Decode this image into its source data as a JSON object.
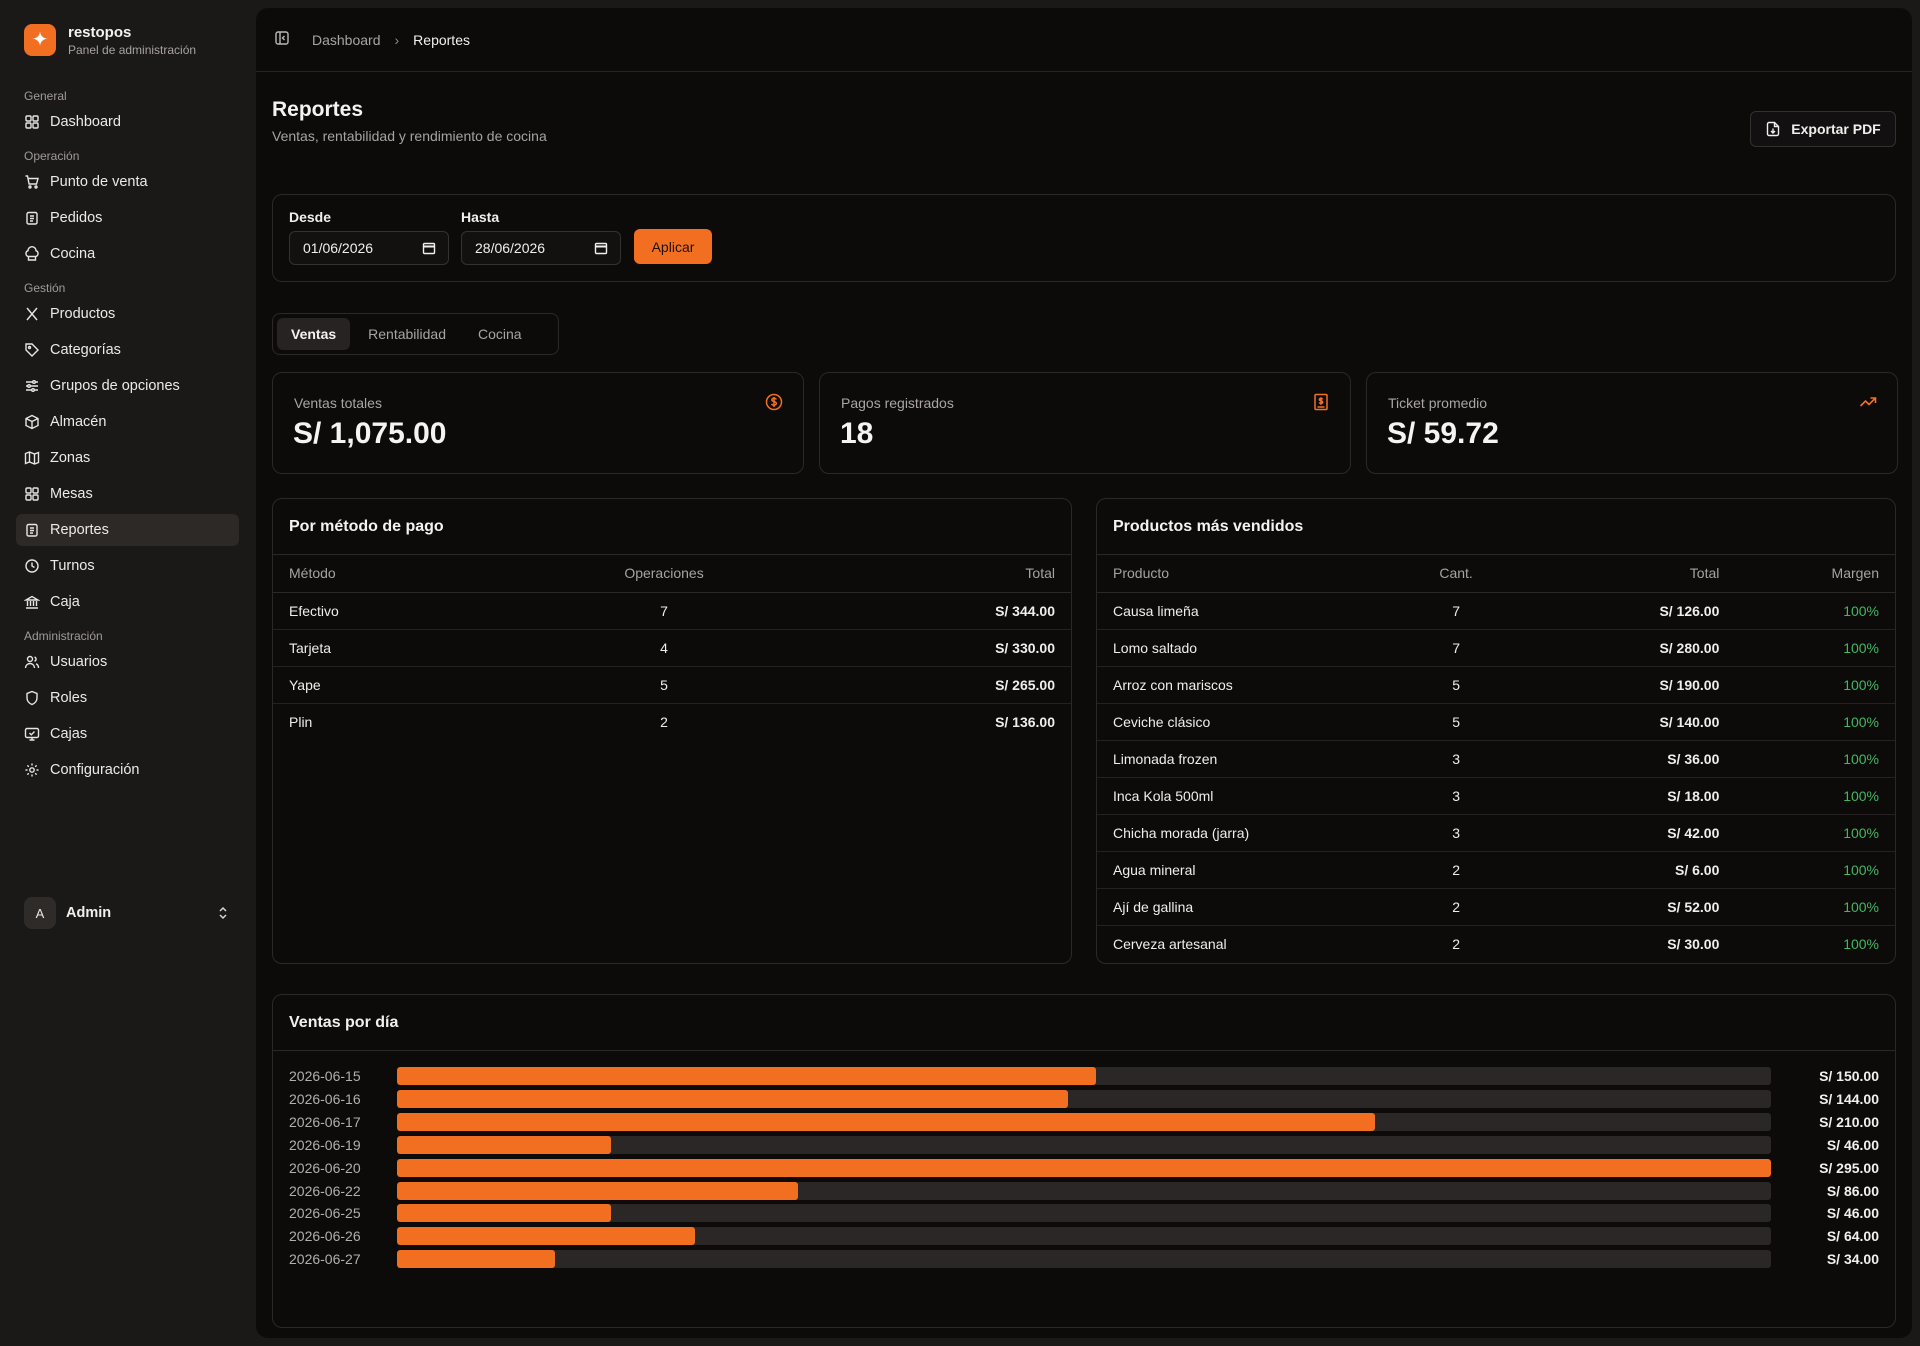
{
  "brand": {
    "name": "restopos",
    "subtitle": "Panel de administración"
  },
  "nav": {
    "groups": [
      {
        "label": "General",
        "items": [
          "Dashboard"
        ]
      },
      {
        "label": "Operación",
        "items": [
          "Punto de venta",
          "Pedidos",
          "Cocina"
        ]
      },
      {
        "label": "Gestión",
        "items": [
          "Productos",
          "Categorías",
          "Grupos de opciones",
          "Almacén",
          "Zonas",
          "Mesas",
          "Reportes",
          "Turnos",
          "Caja"
        ]
      },
      {
        "label": "Administración",
        "items": [
          "Usuarios",
          "Roles",
          "Cajas",
          "Configuración"
        ]
      }
    ],
    "active": "Reportes"
  },
  "user": {
    "initial": "A",
    "name": "Admin"
  },
  "breadcrumb": {
    "parent": "Dashboard",
    "current": "Reportes"
  },
  "page": {
    "title": "Reportes",
    "subtitle": "Ventas, rentabilidad y rendimiento de cocina",
    "export_label": "Exportar PDF"
  },
  "filters": {
    "from_label": "Desde",
    "from_value": "01/06/2026",
    "to_label": "Hasta",
    "to_value": "28/06/2026",
    "apply_label": "Aplicar"
  },
  "tabs": [
    "Ventas",
    "Rentabilidad",
    "Cocina"
  ],
  "active_tab": "Ventas",
  "stats": [
    {
      "label": "Ventas totales",
      "value": "S/ 1,075.00",
      "icon": "dollar-circle-icon"
    },
    {
      "label": "Pagos registrados",
      "value": "18",
      "icon": "receipt-icon"
    },
    {
      "label": "Ticket promedio",
      "value": "S/ 59.72",
      "icon": "trending-up-icon"
    }
  ],
  "payment_methods": {
    "title": "Por método de pago",
    "headers": [
      "Método",
      "Operaciones",
      "Total"
    ],
    "rows": [
      [
        "Efectivo",
        "7",
        "S/ 344.00"
      ],
      [
        "Tarjeta",
        "4",
        "S/ 330.00"
      ],
      [
        "Yape",
        "5",
        "S/ 265.00"
      ],
      [
        "Plin",
        "2",
        "S/ 136.00"
      ]
    ]
  },
  "top_products": {
    "title": "Productos más vendidos",
    "headers": [
      "Producto",
      "Cant.",
      "Total",
      "Margen"
    ],
    "rows": [
      [
        "Causa limeña",
        "7",
        "S/ 126.00",
        "100%"
      ],
      [
        "Lomo saltado",
        "7",
        "S/ 280.00",
        "100%"
      ],
      [
        "Arroz con mariscos",
        "5",
        "S/ 190.00",
        "100%"
      ],
      [
        "Ceviche clásico",
        "5",
        "S/ 140.00",
        "100%"
      ],
      [
        "Limonada frozen",
        "3",
        "S/ 36.00",
        "100%"
      ],
      [
        "Inca Kola 500ml",
        "3",
        "S/ 18.00",
        "100%"
      ],
      [
        "Chicha morada (jarra)",
        "3",
        "S/ 42.00",
        "100%"
      ],
      [
        "Agua mineral",
        "2",
        "S/ 6.00",
        "100%"
      ],
      [
        "Ají de gallina",
        "2",
        "S/ 52.00",
        "100%"
      ],
      [
        "Cerveza artesanal",
        "2",
        "S/ 30.00",
        "100%"
      ]
    ]
  },
  "daily_sales": {
    "title": "Ventas por día",
    "rows": [
      {
        "date": "2026-06-15",
        "amount_label": "S/ 150.00",
        "value": 150
      },
      {
        "date": "2026-06-16",
        "amount_label": "S/ 144.00",
        "value": 144
      },
      {
        "date": "2026-06-17",
        "amount_label": "S/ 210.00",
        "value": 210
      },
      {
        "date": "2026-06-19",
        "amount_label": "S/ 46.00",
        "value": 46
      },
      {
        "date": "2026-06-20",
        "amount_label": "S/ 295.00",
        "value": 295
      },
      {
        "date": "2026-06-22",
        "amount_label": "S/ 86.00",
        "value": 86
      },
      {
        "date": "2026-06-25",
        "amount_label": "S/ 46.00",
        "value": 46
      },
      {
        "date": "2026-06-26",
        "amount_label": "S/ 64.00",
        "value": 64
      },
      {
        "date": "2026-06-27",
        "amount_label": "S/ 34.00",
        "value": 34
      }
    ]
  },
  "colors": {
    "accent": "#f26f22",
    "margin_green": "#3fb95f",
    "sidebar_bg": "#1b1918",
    "main_bg": "#0d0b0a"
  }
}
